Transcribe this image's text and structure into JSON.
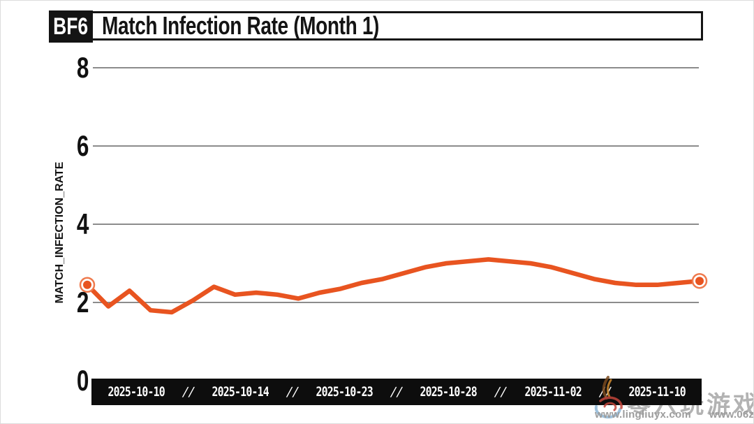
{
  "title_bar": {
    "badge": "BF6",
    "title": "Match Infection Rate (Month 1)"
  },
  "chart_data": {
    "type": "line",
    "title": "Match Infection Rate (Month 1)",
    "xlabel": "",
    "ylabel": "MATCH_INFECTION_RATE",
    "ylim": [
      0,
      8
    ],
    "y_ticks": [
      0,
      2,
      4,
      6,
      8
    ],
    "grid": true,
    "legend": false,
    "x_tick_labels": [
      "2025-10-10",
      "2025-10-14",
      "2025-10-23",
      "2025-10-28",
      "2025-11-02",
      "2025-11-10"
    ],
    "x_tick_separator": "//",
    "series": [
      {
        "name": "match_infection_rate",
        "color": "#e85420",
        "values": [
          2.45,
          1.9,
          2.3,
          1.8,
          1.75,
          2.05,
          2.4,
          2.2,
          2.25,
          2.2,
          2.1,
          2.25,
          2.35,
          2.5,
          2.6,
          2.75,
          2.9,
          3.0,
          3.05,
          3.1,
          3.05,
          3.0,
          2.9,
          2.75,
          2.6,
          2.5,
          2.45,
          2.45,
          2.5,
          2.55
        ]
      }
    ],
    "endpoint_markers": "ring",
    "grid_color": "#8c8c8c",
    "axis_bar_color": "#0d0d0d"
  },
  "watermark": {
    "cn_text": "零六玩游戏",
    "url_left": "www.lingliuyx.com",
    "url_right": "www.06zyx.com"
  }
}
